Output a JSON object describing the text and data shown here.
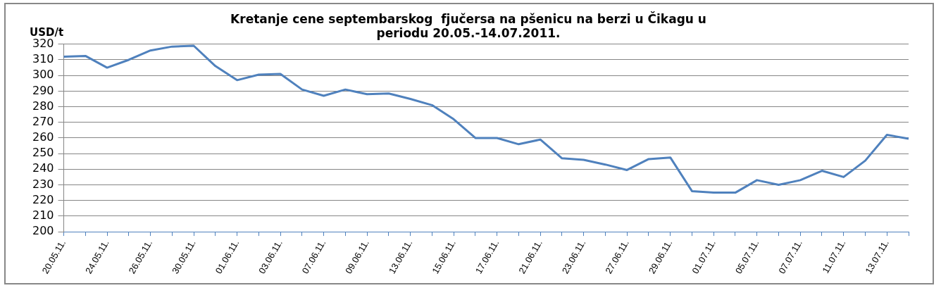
{
  "chart_data": {
    "type": "line",
    "title": "Kretanje cene septembarskog  fjučersa na pšenicu na berzi u Čikagu u\nperiodu 20.05.-14.07.2011.",
    "ylabel": "USD/t",
    "categories": [
      "20.05.11.",
      null,
      "24.05.11.",
      null,
      "26.05.11.",
      null,
      "30.05.11.",
      null,
      "01.06.11.",
      null,
      "03.06.11.",
      null,
      "07.06.11.",
      null,
      "09.06.11.",
      null,
      "13.06.11.",
      null,
      "15.06.11.",
      null,
      "17.06.11.",
      null,
      "21.06.11.",
      null,
      "23.06.11.",
      null,
      "27.06.11.",
      null,
      "29.06.11.",
      null,
      "01.07.11.",
      null,
      "05.07.11.",
      null,
      "07.07.11.",
      null,
      "11.07.11.",
      null,
      "13.07.11.",
      null
    ],
    "series": [
      {
        "color": "#4f81bd",
        "values": [
          312,
          312.5,
          305,
          310,
          316,
          318.5,
          319,
          306,
          297,
          300.5,
          301,
          291,
          287,
          291,
          288,
          288.5,
          285,
          281,
          272,
          260,
          260,
          256,
          259,
          247,
          246,
          243,
          239.5,
          246.5,
          247.5,
          226,
          225,
          225,
          233,
          230,
          233,
          239,
          235,
          245.5,
          262,
          259.5
        ]
      }
    ],
    "ylim": [
      200,
      320
    ],
    "yticks": [
      200,
      210,
      220,
      230,
      240,
      250,
      260,
      270,
      280,
      290,
      300,
      310,
      320
    ],
    "grid": "y",
    "legend": false,
    "marker": "none",
    "line_style": "solid"
  }
}
